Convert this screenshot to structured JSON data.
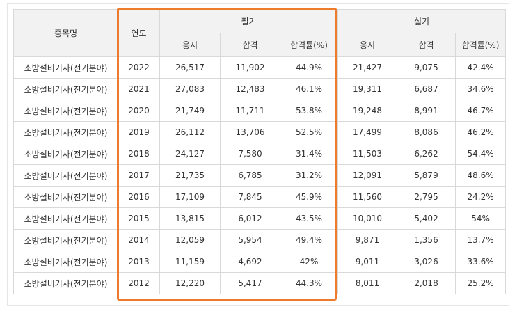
{
  "headers": {
    "item": "종목명",
    "year": "연도",
    "written": "필기",
    "practical": "실기",
    "sub": [
      "응시",
      "합격",
      "합격률(%)",
      "응시",
      "합격",
      "합격률(%)"
    ]
  },
  "rows": [
    {
      "item": "소방설비기사(전기분야)",
      "year": "2022",
      "w_apply": "26,517",
      "w_pass": "11,902",
      "w_rate": "44.9%",
      "p_apply": "21,427",
      "p_pass": "9,075",
      "p_rate": "42.4%"
    },
    {
      "item": "소방설비기사(전기분야)",
      "year": "2021",
      "w_apply": "27,083",
      "w_pass": "12,483",
      "w_rate": "46.1%",
      "p_apply": "19,311",
      "p_pass": "6,687",
      "p_rate": "34.6%"
    },
    {
      "item": "소방설비기사(전기분야)",
      "year": "2020",
      "w_apply": "21,749",
      "w_pass": "11,711",
      "w_rate": "53.8%",
      "p_apply": "19,248",
      "p_pass": "8,991",
      "p_rate": "46.7%"
    },
    {
      "item": "소방설비기사(전기분야)",
      "year": "2019",
      "w_apply": "26,112",
      "w_pass": "13,706",
      "w_rate": "52.5%",
      "p_apply": "17,499",
      "p_pass": "8,086",
      "p_rate": "46.2%"
    },
    {
      "item": "소방설비기사(전기분야)",
      "year": "2018",
      "w_apply": "24,127",
      "w_pass": "7,580",
      "w_rate": "31.4%",
      "p_apply": "11,503",
      "p_pass": "6,262",
      "p_rate": "54.4%"
    },
    {
      "item": "소방설비기사(전기분야)",
      "year": "2017",
      "w_apply": "21,735",
      "w_pass": "6,785",
      "w_rate": "31.2%",
      "p_apply": "12,091",
      "p_pass": "5,879",
      "p_rate": "48.6%"
    },
    {
      "item": "소방설비기사(전기분야)",
      "year": "2016",
      "w_apply": "17,109",
      "w_pass": "7,845",
      "w_rate": "45.9%",
      "p_apply": "11,560",
      "p_pass": "2,795",
      "p_rate": "24.2%"
    },
    {
      "item": "소방설비기사(전기분야)",
      "year": "2015",
      "w_apply": "13,815",
      "w_pass": "6,012",
      "w_rate": "43.5%",
      "p_apply": "10,010",
      "p_pass": "5,402",
      "p_rate": "54%"
    },
    {
      "item": "소방설비기사(전기분야)",
      "year": "2014",
      "w_apply": "12,059",
      "w_pass": "5,954",
      "w_rate": "49.4%",
      "p_apply": "9,871",
      "p_pass": "1,356",
      "p_rate": "13.7%"
    },
    {
      "item": "소방설비기사(전기분야)",
      "year": "2013",
      "w_apply": "11,159",
      "w_pass": "4,692",
      "w_rate": "42%",
      "p_apply": "9,011",
      "p_pass": "3,026",
      "p_rate": "33.6%"
    },
    {
      "item": "소방설비기사(전기분야)",
      "year": "2012",
      "w_apply": "12,220",
      "w_pass": "5,417",
      "w_rate": "44.3%",
      "p_apply": "8,011",
      "p_pass": "2,018",
      "p_rate": "25.2%"
    }
  ],
  "colors": {
    "highlight_border": "#ee7a2c",
    "header_bg": "#f2f2f2",
    "grid": "#d9d9d9"
  }
}
